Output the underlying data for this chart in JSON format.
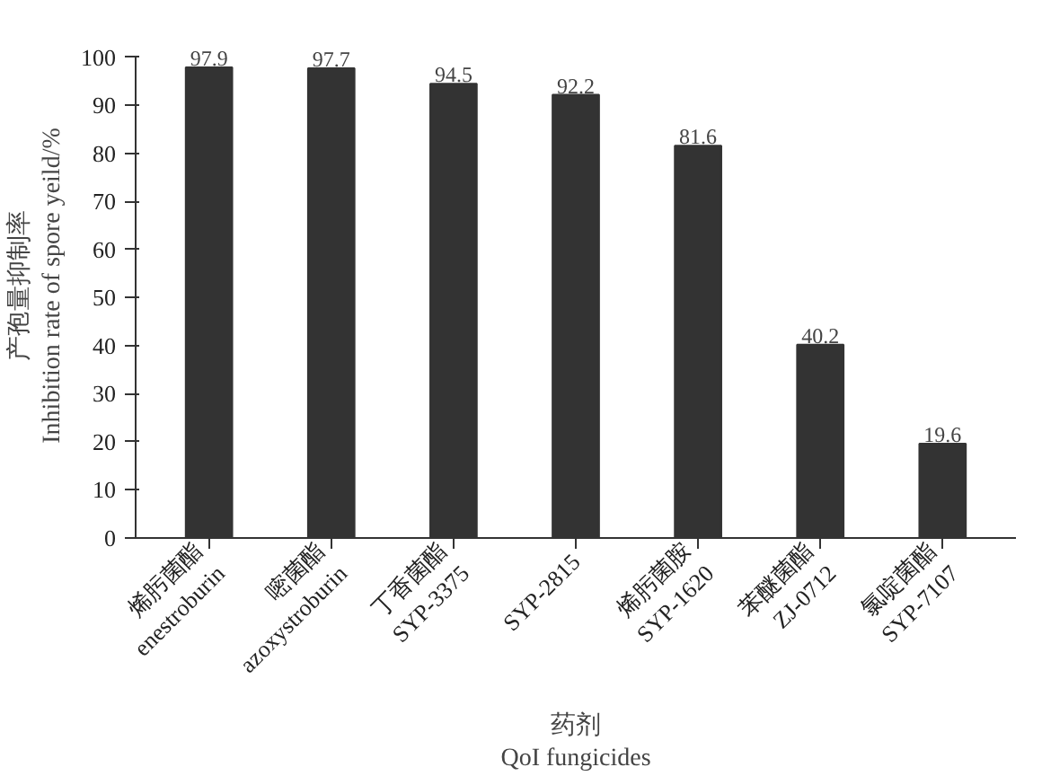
{
  "chart_data": {
    "type": "bar",
    "xlabel": "药剂\nQoI fungicides",
    "ylabel": "产孢量抑制率\nInhibition rate of spore yeild/%",
    "categories": [
      "烯肟菌酯\nenestroburin",
      "嘧菌酯\nazoxystroburin",
      "丁香菌酯\nSYP-3375",
      "SYP-2815",
      "烯肟菌胺\nSYP-1620",
      "苯醚菌酯\nZJ-0712",
      "氯啶菌酯\nSYP-7107"
    ],
    "values": [
      97.9,
      97.7,
      94.5,
      92.2,
      81.6,
      40.2,
      19.6
    ],
    "color": "#333333",
    "data_labels": true,
    "ylim": [
      0,
      100
    ],
    "yticks": [
      0,
      10,
      20,
      30,
      40,
      50,
      60,
      70,
      80,
      90,
      100
    ],
    "grid": false
  }
}
